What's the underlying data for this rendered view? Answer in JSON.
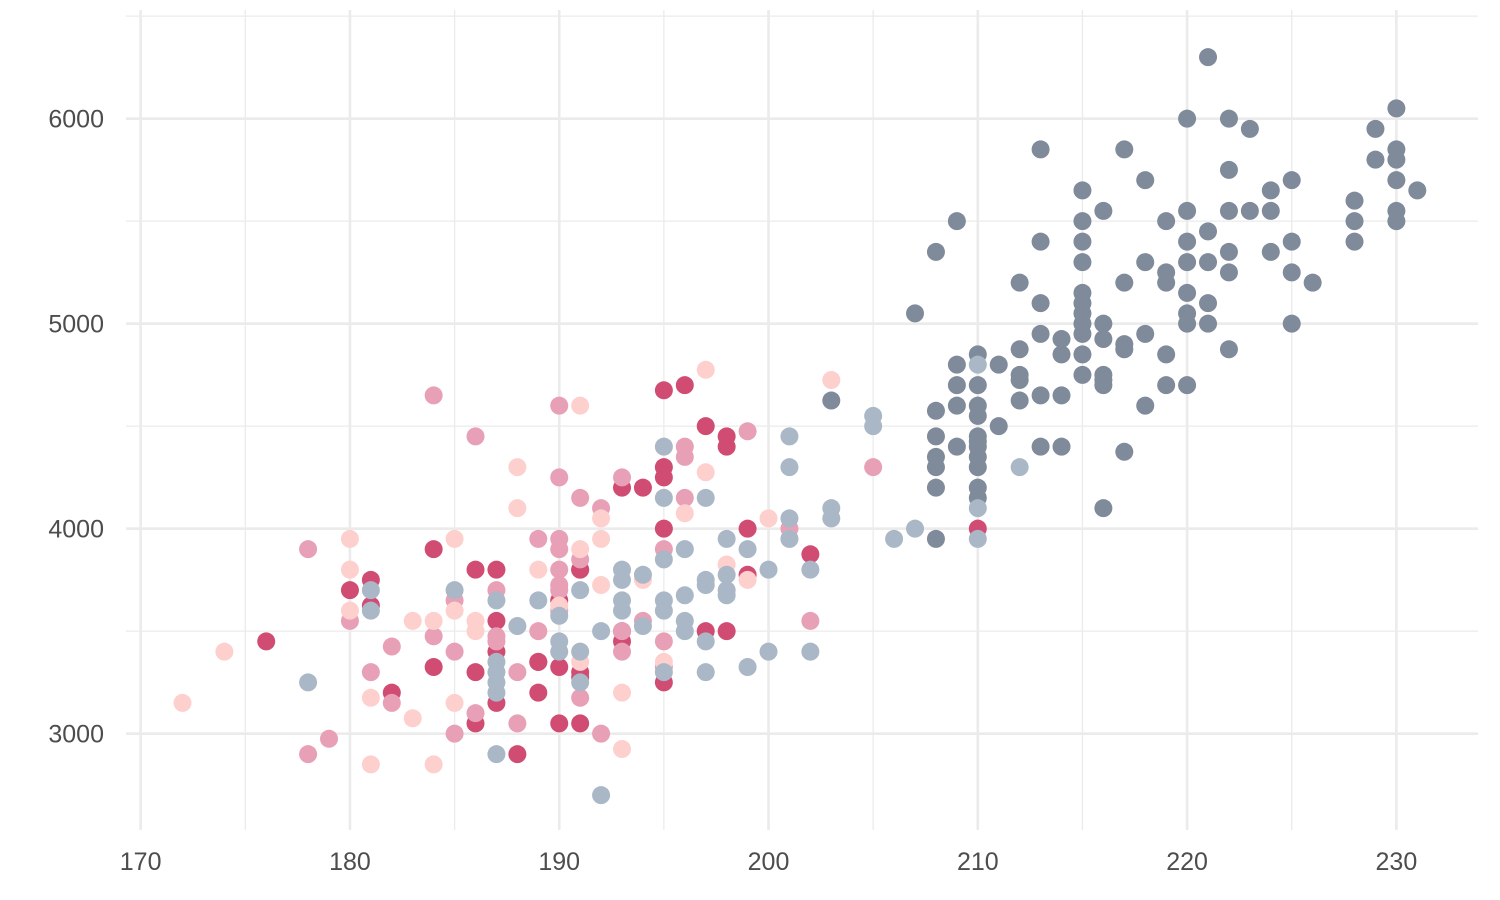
{
  "chart_data": {
    "type": "scatter",
    "title": "",
    "xlabel": "",
    "ylabel": "",
    "xlim": [
      169.3,
      233.9
    ],
    "ylim": [
      2530,
      6530
    ],
    "x_ticks": [
      170,
      180,
      190,
      200,
      210,
      220,
      230
    ],
    "y_ticks": [
      3000,
      4000,
      5000,
      6000
    ],
    "grid": true,
    "legend": "none",
    "colors": {
      "dark_gray": "#7f8a9a",
      "crimson": "#d04c73",
      "pink": "#e7a0b5",
      "blush": "#fdd0ce",
      "blue_gray": "#a9b7c7"
    },
    "series": [
      {
        "color": "#7f8a9a",
        "points": [
          [
            221,
            6300
          ],
          [
            230,
            6050
          ],
          [
            222,
            6000
          ],
          [
            220,
            6000
          ],
          [
            223,
            5950
          ],
          [
            229,
            5950
          ],
          [
            213,
            5850
          ],
          [
            217,
            5850
          ],
          [
            230,
            5850
          ],
          [
            229,
            5800
          ],
          [
            230,
            5800
          ],
          [
            218,
            5700
          ],
          [
            225,
            5700
          ],
          [
            230,
            5700
          ],
          [
            222,
            5750
          ],
          [
            215,
            5650
          ],
          [
            224,
            5650
          ],
          [
            231,
            5650
          ],
          [
            228,
            5600
          ],
          [
            209,
            5500
          ],
          [
            215,
            5500
          ],
          [
            216,
            5550
          ],
          [
            220,
            5550
          ],
          [
            222,
            5550
          ],
          [
            223,
            5550
          ],
          [
            224,
            5550
          ],
          [
            219,
            5500
          ],
          [
            228,
            5500
          ],
          [
            230,
            5500
          ],
          [
            230,
            5550
          ],
          [
            213,
            5400
          ],
          [
            215,
            5400
          ],
          [
            220,
            5400
          ],
          [
            225,
            5400
          ],
          [
            228,
            5400
          ],
          [
            208,
            5350
          ],
          [
            222,
            5350
          ],
          [
            224,
            5350
          ],
          [
            221,
            5450
          ],
          [
            215,
            5300
          ],
          [
            218,
            5300
          ],
          [
            220,
            5300
          ],
          [
            221,
            5300
          ],
          [
            212,
            5200
          ],
          [
            217,
            5200
          ],
          [
            219,
            5200
          ],
          [
            226,
            5200
          ],
          [
            219,
            5250
          ],
          [
            222,
            5250
          ],
          [
            225,
            5250
          ],
          [
            213,
            5100
          ],
          [
            215,
            5100
          ],
          [
            220,
            5150
          ],
          [
            221,
            5100
          ],
          [
            215,
            5150
          ],
          [
            207,
            5050
          ],
          [
            215,
            5050
          ],
          [
            220,
            5050
          ],
          [
            215,
            5000
          ],
          [
            216,
            5000
          ],
          [
            220,
            5000
          ],
          [
            221,
            5000
          ],
          [
            225,
            5000
          ],
          [
            213,
            4950
          ],
          [
            215,
            4950
          ],
          [
            214,
            4925
          ],
          [
            216,
            4925
          ],
          [
            218,
            4950
          ],
          [
            217,
            4900
          ],
          [
            210,
            4850
          ],
          [
            212,
            4875
          ],
          [
            214,
            4850
          ],
          [
            215,
            4850
          ],
          [
            217,
            4875
          ],
          [
            219,
            4850
          ],
          [
            222,
            4875
          ],
          [
            209,
            4800
          ],
          [
            211,
            4800
          ],
          [
            215,
            4750
          ],
          [
            216,
            4750
          ],
          [
            212,
            4750
          ],
          [
            209,
            4700
          ],
          [
            210,
            4700
          ],
          [
            212,
            4725
          ],
          [
            216,
            4700
          ],
          [
            219,
            4700
          ],
          [
            220,
            4700
          ],
          [
            216,
            4725
          ],
          [
            203,
            4625
          ],
          [
            212,
            4625
          ],
          [
            213,
            4650
          ],
          [
            214,
            4650
          ],
          [
            209,
            4600
          ],
          [
            210,
            4600
          ],
          [
            218,
            4600
          ],
          [
            208,
            4575
          ],
          [
            210,
            4550
          ],
          [
            211,
            4500
          ],
          [
            208,
            4450
          ],
          [
            210,
            4450
          ],
          [
            210,
            4425
          ],
          [
            209,
            4400
          ],
          [
            210,
            4400
          ],
          [
            213,
            4400
          ],
          [
            214,
            4400
          ],
          [
            217,
            4375
          ],
          [
            208,
            4350
          ],
          [
            210,
            4350
          ],
          [
            208,
            4300
          ],
          [
            210,
            4300
          ],
          [
            210,
            4200
          ],
          [
            208,
            4200
          ],
          [
            210,
            4150
          ],
          [
            216,
            4100
          ],
          [
            208,
            3950
          ]
        ]
      },
      {
        "color": "#d04c73",
        "points": [
          [
            196,
            4700
          ],
          [
            195,
            4675
          ],
          [
            197,
            4500
          ],
          [
            198,
            4450
          ],
          [
            198,
            4400
          ],
          [
            195,
            4300
          ],
          [
            195,
            4250
          ],
          [
            194,
            4200
          ],
          [
            193,
            4200
          ],
          [
            195,
            4000
          ],
          [
            199,
            4000
          ],
          [
            202,
            3875
          ],
          [
            210,
            4000
          ],
          [
            184,
            3900
          ],
          [
            199,
            3775
          ],
          [
            186,
            3800
          ],
          [
            187,
            3800
          ],
          [
            191,
            3800
          ],
          [
            181,
            3750
          ],
          [
            180,
            3700
          ],
          [
            181,
            3625
          ],
          [
            187,
            3550
          ],
          [
            193,
            3500
          ],
          [
            197,
            3500
          ],
          [
            198,
            3500
          ],
          [
            176,
            3450
          ],
          [
            193,
            3450
          ],
          [
            187,
            3400
          ],
          [
            189,
            3350
          ],
          [
            190,
            3325
          ],
          [
            184,
            3325
          ],
          [
            186,
            3300
          ],
          [
            191,
            3300
          ],
          [
            191,
            3275
          ],
          [
            195,
            3250
          ],
          [
            182,
            3200
          ],
          [
            189,
            3200
          ],
          [
            187,
            3150
          ],
          [
            186,
            3050
          ],
          [
            190,
            3050
          ],
          [
            191,
            3050
          ],
          [
            188,
            2900
          ],
          [
            189,
            3350
          ],
          [
            191,
            3800
          ],
          [
            190,
            3650
          ]
        ]
      },
      {
        "color": "#e7a0b5",
        "points": [
          [
            184,
            4650
          ],
          [
            190,
            4600
          ],
          [
            186,
            4450
          ],
          [
            199,
            4475
          ],
          [
            196,
            4400
          ],
          [
            196,
            4350
          ],
          [
            205,
            4300
          ],
          [
            190,
            4250
          ],
          [
            193,
            4250
          ],
          [
            191,
            4150
          ],
          [
            196,
            4150
          ],
          [
            192,
            4100
          ],
          [
            189,
            3950
          ],
          [
            190,
            3950
          ],
          [
            190,
            3900
          ],
          [
            195,
            3900
          ],
          [
            178,
            3900
          ],
          [
            190,
            3800
          ],
          [
            187,
            3700
          ],
          [
            190,
            3725
          ],
          [
            190,
            3700
          ],
          [
            185,
            3650
          ],
          [
            190,
            3600
          ],
          [
            180,
            3550
          ],
          [
            194,
            3550
          ],
          [
            202,
            3550
          ],
          [
            184,
            3475
          ],
          [
            187,
            3475
          ],
          [
            189,
            3500
          ],
          [
            193,
            3500
          ],
          [
            182,
            3425
          ],
          [
            187,
            3450
          ],
          [
            195,
            3450
          ],
          [
            185,
            3400
          ],
          [
            193,
            3400
          ],
          [
            181,
            3300
          ],
          [
            188,
            3300
          ],
          [
            195,
            3325
          ],
          [
            182,
            3150
          ],
          [
            191,
            3175
          ],
          [
            186,
            3100
          ],
          [
            185,
            3000
          ],
          [
            188,
            3050
          ],
          [
            192,
            3000
          ],
          [
            179,
            2975
          ],
          [
            178,
            2900
          ],
          [
            201,
            4000
          ],
          [
            191,
            3850
          ]
        ]
      },
      {
        "color": "#fdd0ce",
        "points": [
          [
            197,
            4775
          ],
          [
            203,
            4725
          ],
          [
            191,
            4600
          ],
          [
            188,
            4300
          ],
          [
            197,
            4275
          ],
          [
            188,
            4100
          ],
          [
            196,
            4075
          ],
          [
            200,
            4050
          ],
          [
            192,
            4050
          ],
          [
            180,
            3950
          ],
          [
            185,
            3950
          ],
          [
            192,
            3950
          ],
          [
            201,
            3950
          ],
          [
            191,
            3900
          ],
          [
            189,
            3800
          ],
          [
            180,
            3800
          ],
          [
            198,
            3825
          ],
          [
            194,
            3750
          ],
          [
            199,
            3750
          ],
          [
            192,
            3725
          ],
          [
            180,
            3600
          ],
          [
            185,
            3600
          ],
          [
            183,
            3550
          ],
          [
            184,
            3550
          ],
          [
            186,
            3550
          ],
          [
            186,
            3500
          ],
          [
            174,
            3400
          ],
          [
            191,
            3350
          ],
          [
            195,
            3350
          ],
          [
            193,
            3200
          ],
          [
            181,
            3175
          ],
          [
            185,
            3150
          ],
          [
            172,
            3150
          ],
          [
            183,
            3075
          ],
          [
            193,
            2925
          ],
          [
            181,
            2850
          ],
          [
            184,
            2850
          ],
          [
            190,
            3625
          ]
        ]
      },
      {
        "color": "#a9b7c7",
        "points": [
          [
            205,
            4550
          ],
          [
            205,
            4500
          ],
          [
            201,
            4450
          ],
          [
            195,
            4400
          ],
          [
            201,
            4300
          ],
          [
            212,
            4300
          ],
          [
            197,
            4150
          ],
          [
            195,
            4150
          ],
          [
            203,
            4100
          ],
          [
            210,
            4100
          ],
          [
            201,
            4050
          ],
          [
            203,
            4050
          ],
          [
            207,
            4000
          ],
          [
            201,
            3950
          ],
          [
            206,
            3950
          ],
          [
            210,
            3950
          ],
          [
            198,
            3950
          ],
          [
            196,
            3900
          ],
          [
            199,
            3900
          ],
          [
            195,
            3850
          ],
          [
            193,
            3800
          ],
          [
            194,
            3775
          ],
          [
            198,
            3775
          ],
          [
            200,
            3800
          ],
          [
            202,
            3800
          ],
          [
            197,
            3750
          ],
          [
            193,
            3750
          ],
          [
            197,
            3725
          ],
          [
            181,
            3700
          ],
          [
            185,
            3700
          ],
          [
            191,
            3700
          ],
          [
            196,
            3675
          ],
          [
            198,
            3700
          ],
          [
            198,
            3675
          ],
          [
            187,
            3650
          ],
          [
            189,
            3650
          ],
          [
            193,
            3650
          ],
          [
            195,
            3650
          ],
          [
            181,
            3600
          ],
          [
            190,
            3575
          ],
          [
            195,
            3600
          ],
          [
            193,
            3600
          ],
          [
            196,
            3550
          ],
          [
            188,
            3525
          ],
          [
            194,
            3525
          ],
          [
            192,
            3500
          ],
          [
            196,
            3500
          ],
          [
            197,
            3450
          ],
          [
            190,
            3450
          ],
          [
            187,
            3350
          ],
          [
            190,
            3400
          ],
          [
            191,
            3400
          ],
          [
            200,
            3400
          ],
          [
            202,
            3400
          ],
          [
            187,
            3300
          ],
          [
            191,
            3250
          ],
          [
            187,
            3250
          ],
          [
            195,
            3300
          ],
          [
            197,
            3300
          ],
          [
            199,
            3325
          ],
          [
            178,
            3250
          ],
          [
            187,
            3200
          ],
          [
            187,
            2900
          ],
          [
            192,
            2700
          ],
          [
            210,
            4800
          ]
        ]
      }
    ]
  }
}
